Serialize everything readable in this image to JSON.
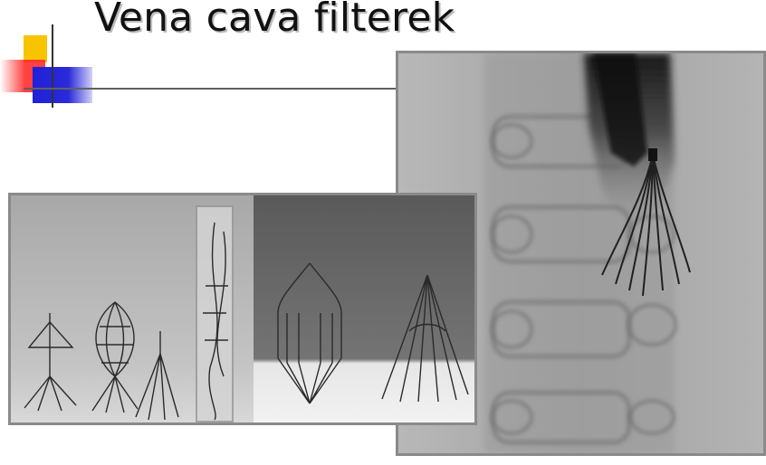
{
  "slide": {
    "title": "Vena cava filterek"
  },
  "images": {
    "xray": "x-ray image of a vena cava filter placed in the inferior vena cava",
    "filters": "photo of various vena cava filter devices"
  },
  "colors": {
    "accent_yellow": "#f8c400",
    "accent_red": "#ff2c2c",
    "accent_blue": "#2020d8"
  }
}
